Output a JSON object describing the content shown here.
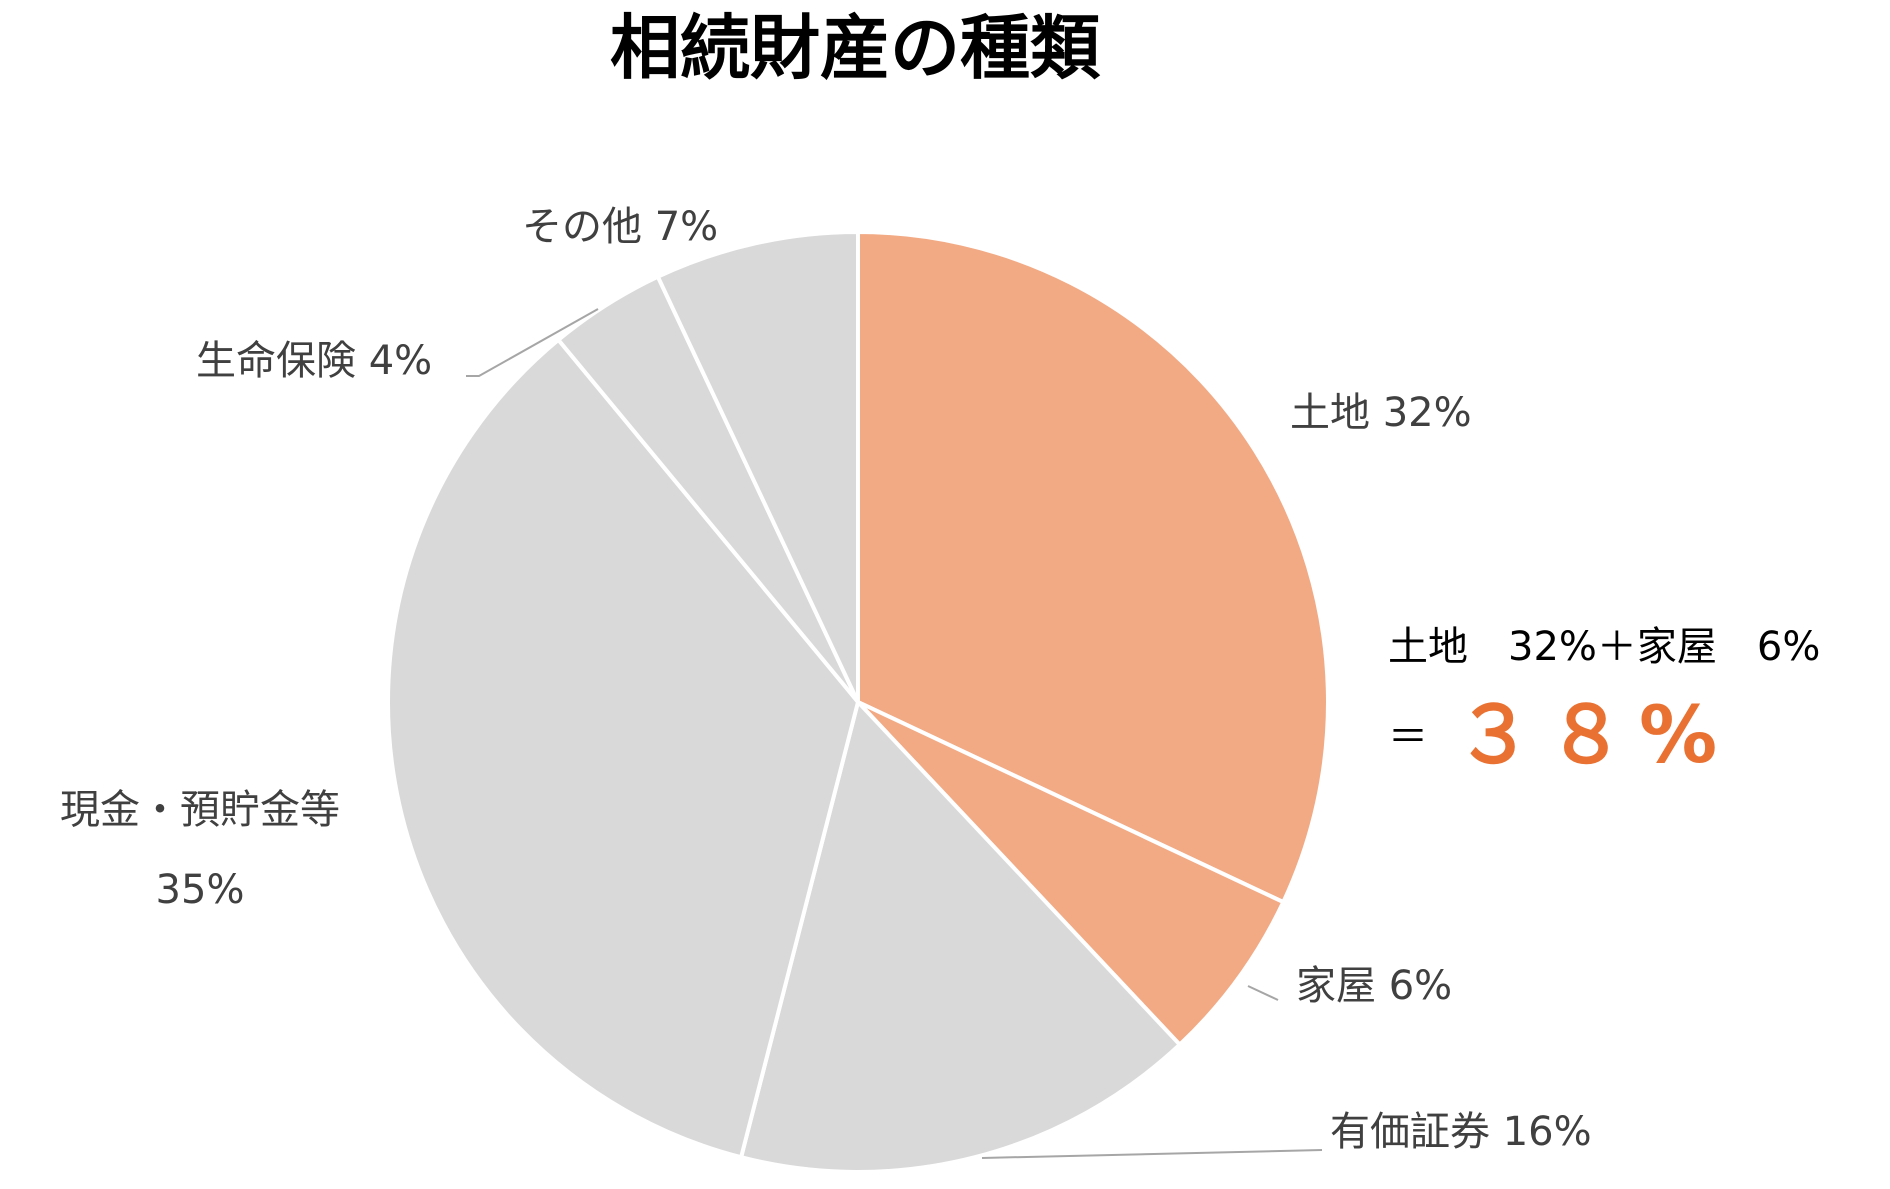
{
  "chart_data": {
    "type": "pie",
    "title": "相続財産の種類",
    "start_angle_deg": 90,
    "direction": "clockwise",
    "slices": [
      {
        "label": "土地",
        "value": 32,
        "percent_label": "32%",
        "color": "#F2AA85"
      },
      {
        "label": "家屋",
        "value": 6,
        "percent_label": "6%",
        "color": "#F2AA85"
      },
      {
        "label": "有価証券",
        "value": 16,
        "percent_label": "16%",
        "color": "#D9D9D9"
      },
      {
        "label": "現金・預貯金等",
        "value": 35,
        "percent_label": "35%",
        "color": "#D9D9D9"
      },
      {
        "label": "生命保険",
        "value": 4,
        "percent_label": "4%",
        "color": "#D9D9D9"
      },
      {
        "label": "その他",
        "value": 7,
        "percent_label": "7%",
        "color": "#D9D9D9"
      }
    ],
    "slice_border_color": "#FFFFFF",
    "label_color": "#404040",
    "leader_line_color": "#A6A6A6"
  },
  "annotation": {
    "line1": "土地　32%＋家屋　6%",
    "equals": "＝",
    "result": "３８%",
    "result_color": "#E97132"
  }
}
